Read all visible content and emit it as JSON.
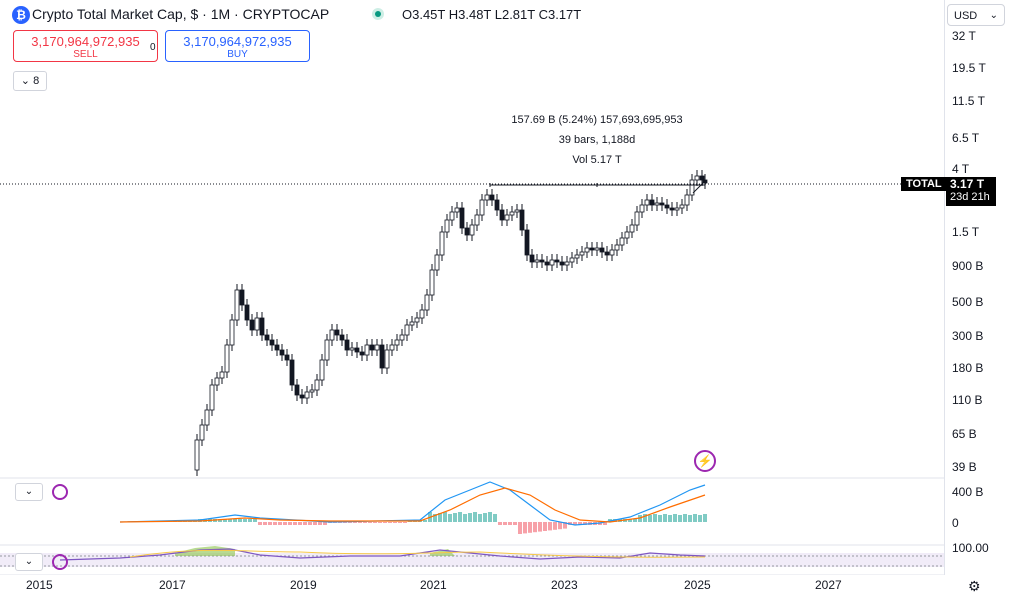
{
  "header": {
    "logo_glyph": "₿",
    "title": "Crypto Total Market Cap, $ · 1M · CRYPTOCAP",
    "ohlc": "O3.45T H3.48T L2.81T C3.17T"
  },
  "trade": {
    "sell_price": "3,170,964,972,935",
    "sell_label": "SELL",
    "buy_price": "3,170,964,972,935",
    "buy_label": "BUY",
    "spread": "0"
  },
  "indicators_count": "8",
  "measure": {
    "line1": "157.69 B (5.24%) 157,693,695,953",
    "line2": "39 bars, 1,188d",
    "line3": "Vol 5.17 T"
  },
  "price_axis": {
    "currency": "USD",
    "ticks": [
      "32 T",
      "19.5 T",
      "11.5 T",
      "6.5 T",
      "4 T",
      "1.5 T",
      "900 B",
      "500 B",
      "300 B",
      "180 B",
      "110 B",
      "65 B",
      "39 B"
    ]
  },
  "symbol_tag": "TOTAL",
  "last_price": "3.17 T",
  "countdown": "23d 21h",
  "macd_axis": [
    "400 B",
    "0"
  ],
  "rsi_axis": "100.00",
  "time_axis": [
    "2015",
    "2017",
    "2019",
    "2021",
    "2023",
    "2025",
    "2027"
  ],
  "colors": {
    "up": "#089981",
    "down": "#f23645",
    "accent": "#2962ff",
    "macd": "#2196f3",
    "signal": "#ff6d00",
    "rsi": "#7e57c2"
  },
  "icons": {
    "collapse": "chevron-down-icon",
    "settings": "gear-icon",
    "flash": "lightning-icon",
    "refresh": "refresh-icon"
  }
}
